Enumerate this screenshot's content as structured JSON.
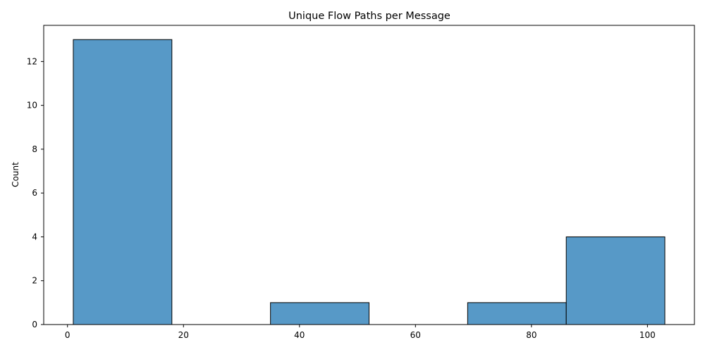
{
  "chart_data": {
    "type": "bar",
    "title": "Unique Flow Paths per Message",
    "xlabel": "",
    "ylabel": "Count",
    "bins": [
      {
        "x0": 1,
        "x1": 18,
        "count": 13
      },
      {
        "x0": 18,
        "x1": 35,
        "count": 0
      },
      {
        "x0": 35,
        "x1": 52,
        "count": 1
      },
      {
        "x0": 52,
        "x1": 69,
        "count": 0
      },
      {
        "x0": 69,
        "x1": 86,
        "count": 1
      },
      {
        "x0": 86,
        "x1": 103,
        "count": 4
      }
    ],
    "xlim": [
      -4.1,
      108.1
    ],
    "ylim": [
      0,
      13.65
    ],
    "xticks": [
      0,
      20,
      40,
      60,
      80,
      100
    ],
    "yticks": [
      0,
      2,
      4,
      6,
      8,
      10,
      12
    ],
    "grid": false,
    "legend": "none",
    "colors": {
      "bar_fill": "#5799c7",
      "bar_edge": "#000000",
      "axis": "#000000"
    }
  }
}
